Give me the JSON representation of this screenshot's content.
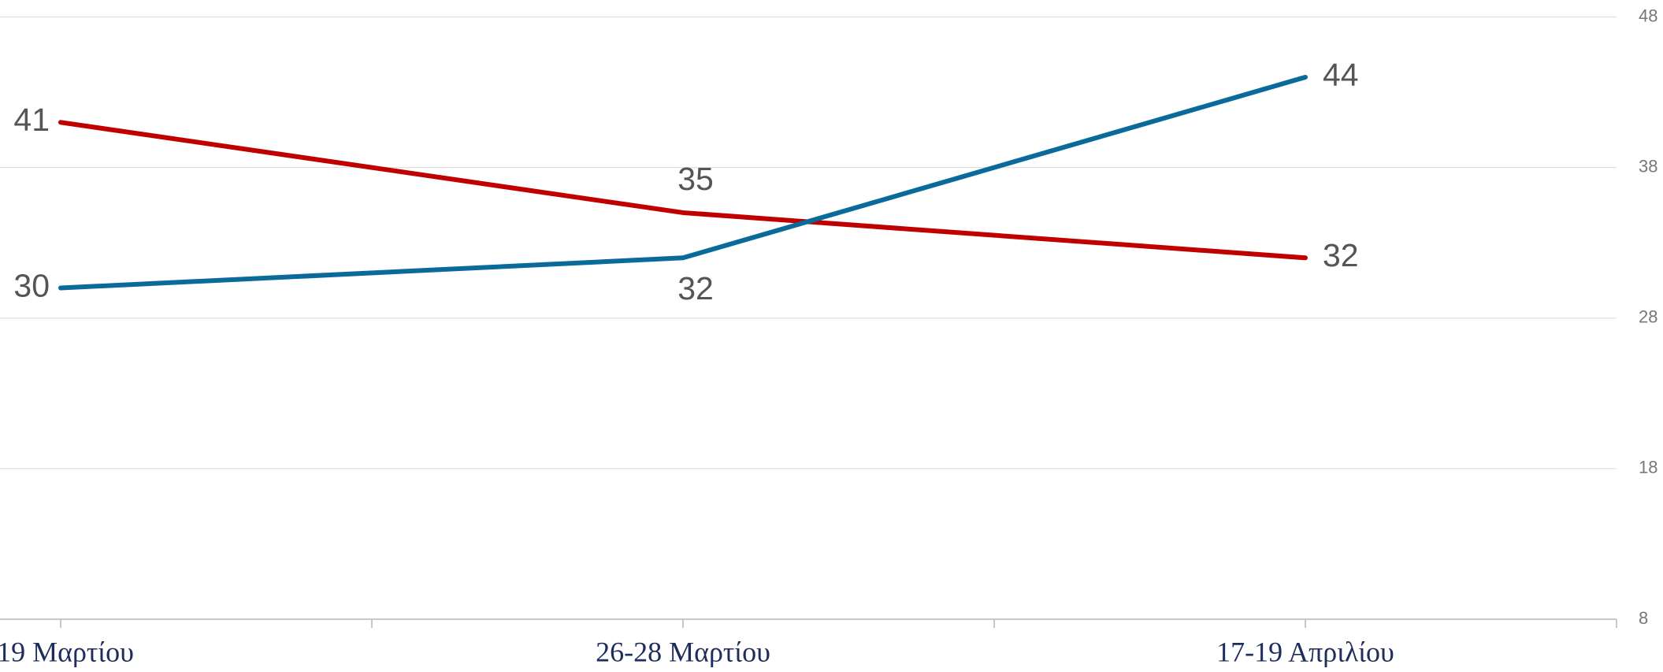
{
  "chart_data": {
    "type": "line",
    "categories": [
      "-19 Μαρτίου",
      "26-28 Μαρτίου",
      "17-19 Απριλίου"
    ],
    "series": [
      {
        "color": "#c00000",
        "values": [
          41,
          35,
          32
        ]
      },
      {
        "color": "#0a6b9a",
        "values": [
          30,
          32,
          44
        ]
      }
    ],
    "ylim": [
      8,
      48
    ],
    "yticks": [
      8,
      18,
      28,
      38,
      48
    ],
    "grid": true
  }
}
